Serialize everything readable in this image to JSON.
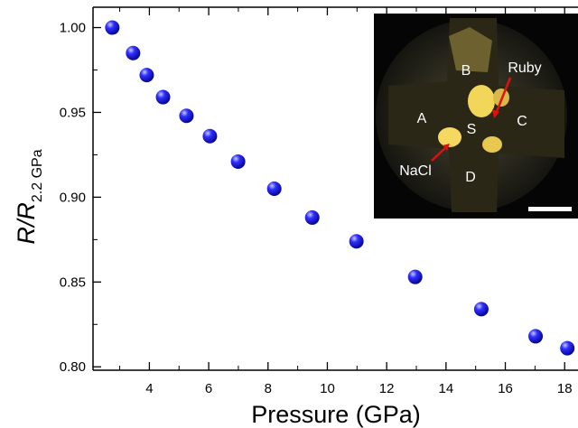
{
  "chart_data": {
    "type": "scatter",
    "x_label": "Pressure (GPa)",
    "y_label": "R/R",
    "y_label_sub": "2.2 GPa",
    "x": [
      2.75,
      3.45,
      3.91,
      4.46,
      5.25,
      6.04,
      6.99,
      8.21,
      9.49,
      10.98,
      12.96,
      15.19,
      17.02,
      18.09
    ],
    "values": [
      1.0,
      0.985,
      0.972,
      0.959,
      0.948,
      0.936,
      0.921,
      0.905,
      0.888,
      0.874,
      0.853,
      0.834,
      0.818,
      0.811
    ],
    "color": "#1414e0",
    "xlim": [
      2.1,
      18.45
    ],
    "ylim": [
      0.798,
      1.012
    ],
    "xticks": [
      4,
      6,
      8,
      10,
      12,
      14,
      16,
      18
    ],
    "yticks": [
      {
        "value": 0.8,
        "label": "0.80"
      },
      0.85,
      {
        "value": 0.9,
        "label": "0.90"
      },
      0.95,
      {
        "value": 1,
        "label": "1.00"
      }
    ],
    "inset_labels": [
      "B",
      "Ruby",
      "A",
      "S",
      "C",
      "NaCl",
      "D"
    ]
  }
}
